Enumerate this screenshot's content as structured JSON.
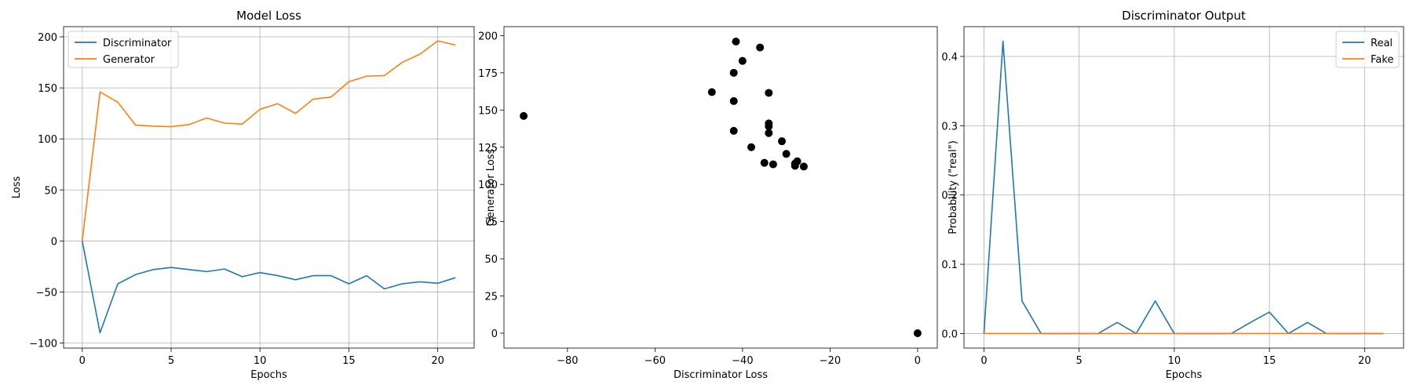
{
  "chart_data": [
    {
      "type": "line",
      "title": "Model Loss",
      "xlabel": "Epochs",
      "ylabel": "Loss",
      "xlim": [
        -1.05,
        22.05
      ],
      "ylim": [
        -105,
        210
      ],
      "xticks": [
        0,
        5,
        10,
        15,
        20
      ],
      "yticks": [
        -100,
        -50,
        0,
        50,
        100,
        150,
        200
      ],
      "grid": true,
      "legend": "top-left",
      "x": [
        0,
        1,
        2,
        3,
        4,
        5,
        6,
        7,
        8,
        9,
        10,
        11,
        12,
        13,
        14,
        15,
        16,
        17,
        18,
        19,
        20,
        21
      ],
      "series": [
        {
          "name": "Discriminator",
          "color": "#1f77b4",
          "values": [
            0,
            -90,
            -42,
            -33,
            -28,
            -26,
            -28,
            -30,
            -27.5,
            -35,
            -31,
            -34,
            -38,
            -34,
            -34,
            -42,
            -34,
            -47,
            -42,
            -40,
            -41.5,
            -36
          ]
        },
        {
          "name": "Generator",
          "color": "#ff7f0e",
          "values": [
            0,
            146,
            136,
            113.5,
            112.5,
            112,
            114,
            120.5,
            115.5,
            114.5,
            129,
            134.5,
            125,
            139,
            141,
            156,
            161.5,
            162,
            175,
            183,
            196,
            192
          ]
        }
      ]
    },
    {
      "type": "scatter",
      "title": "",
      "xlabel": "Discriminator Loss",
      "ylabel": "Generator Loss",
      "xlim": [
        -94.5,
        4.5
      ],
      "ylim": [
        -10,
        206
      ],
      "xticks": [
        -80,
        -60,
        -40,
        -20,
        0
      ],
      "yticks": [
        0,
        25,
        50,
        75,
        100,
        125,
        150,
        175,
        200
      ],
      "grid": false,
      "color": "#000000",
      "points": [
        {
          "x": 0,
          "y": 0
        },
        {
          "x": -90,
          "y": 146
        },
        {
          "x": -42,
          "y": 136
        },
        {
          "x": -33,
          "y": 113.5
        },
        {
          "x": -28,
          "y": 112.5
        },
        {
          "x": -26,
          "y": 112
        },
        {
          "x": -28,
          "y": 114
        },
        {
          "x": -30,
          "y": 120.5
        },
        {
          "x": -27.5,
          "y": 115.5
        },
        {
          "x": -35,
          "y": 114.5
        },
        {
          "x": -31,
          "y": 129
        },
        {
          "x": -34,
          "y": 134.5
        },
        {
          "x": -38,
          "y": 125
        },
        {
          "x": -34,
          "y": 139
        },
        {
          "x": -34,
          "y": 141
        },
        {
          "x": -42,
          "y": 156
        },
        {
          "x": -34,
          "y": 161.5
        },
        {
          "x": -47,
          "y": 162
        },
        {
          "x": -42,
          "y": 175
        },
        {
          "x": -40,
          "y": 183
        },
        {
          "x": -41.5,
          "y": 196
        },
        {
          "x": -36,
          "y": 192
        }
      ]
    },
    {
      "type": "line",
      "title": "Discriminator Output",
      "xlabel": "Epochs",
      "ylabel": "Probability (\"real\")",
      "xlim": [
        -1.05,
        22.05
      ],
      "ylim": [
        -0.021,
        0.443
      ],
      "xticks": [
        0,
        5,
        10,
        15,
        20
      ],
      "yticks": [
        0.0,
        0.1,
        0.2,
        0.3,
        0.4
      ],
      "ytick_labels": [
        "0.0",
        "0.1",
        "0.2",
        "0.3",
        "0.4"
      ],
      "grid": true,
      "legend": "top-right",
      "x": [
        0,
        1,
        2,
        3,
        4,
        5,
        6,
        7,
        8,
        9,
        10,
        11,
        12,
        13,
        14,
        15,
        16,
        17,
        18,
        19,
        20,
        21
      ],
      "series": [
        {
          "name": "Real",
          "color": "#1f77b4",
          "values": [
            0,
            0.422,
            0.047,
            0,
            0,
            0,
            0,
            0.016,
            0,
            0.047,
            0,
            0,
            0,
            0,
            0.016,
            0.031,
            0,
            0.016,
            0,
            0,
            0,
            0
          ]
        },
        {
          "name": "Fake",
          "color": "#ff7f0e",
          "values": [
            0,
            0,
            0,
            0,
            0,
            0,
            0,
            0,
            0,
            0,
            0,
            0,
            0,
            0,
            0,
            0,
            0,
            0,
            0,
            0,
            0,
            0
          ]
        }
      ]
    }
  ]
}
